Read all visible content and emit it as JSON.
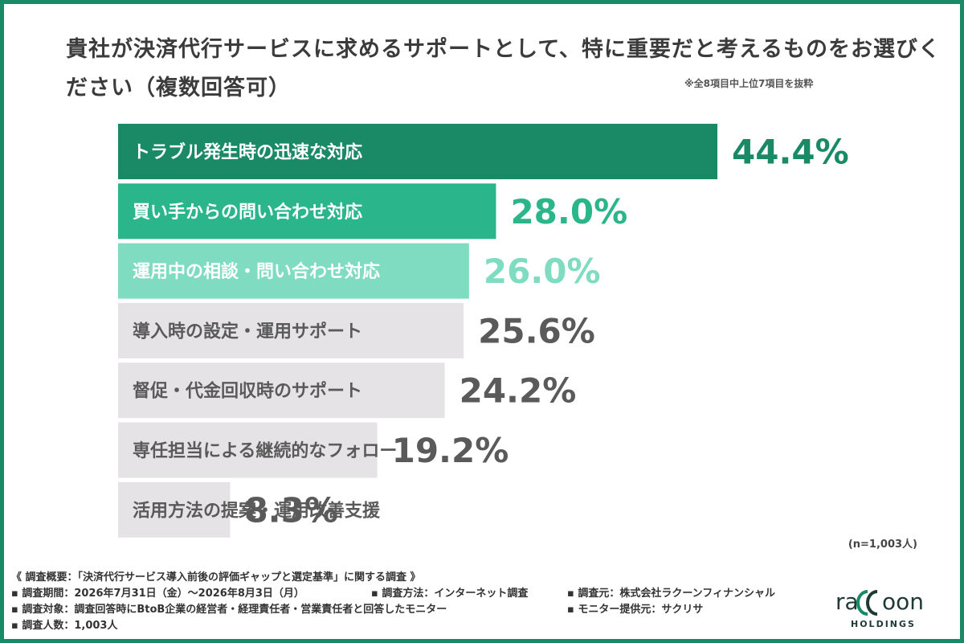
{
  "title": "貴社が決済代行サービスに求めるサポートとして、特に重要だと考えるものをお選びください（複数回答可）",
  "note": "※全8項目中上位7項目を抜粋",
  "sample_size": "(n=1,003人)",
  "chart_data": {
    "type": "bar",
    "orientation": "horizontal",
    "categories": [
      "トラブル発生時の迅速な対応",
      "買い手からの問い合わせ対応",
      "運用中の相談・問い合わせ対応",
      "導入時の設定・運用サポート",
      "督促・代金回収時のサポート",
      "専任担当による継続的なフォロー",
      "活用方法の提案・運用改善支援"
    ],
    "values": [
      44.4,
      28.0,
      26.0,
      25.6,
      24.2,
      19.2,
      8.3
    ],
    "value_labels": [
      "44.4%",
      "28.0%",
      "26.0%",
      "25.6%",
      "24.2%",
      "19.2%",
      "8.3%"
    ],
    "unit": "%",
    "xlim": [
      0,
      44.4
    ],
    "bar_colors": [
      "#1a8a66",
      "#2bb58a",
      "#7fdcc0",
      "#e6e3e6",
      "#e6e3e6",
      "#e6e3e6",
      "#e6e3e6"
    ],
    "label_colors": [
      "#ffffff",
      "#ffffff",
      "#ffffff",
      "#5a5a5a",
      "#5a5a5a",
      "#5a5a5a",
      "#5a5a5a"
    ],
    "value_colors": [
      "#1a8a66",
      "#2bb58a",
      "#7fdcc0",
      "#5a5a5a",
      "#5a5a5a",
      "#5a5a5a",
      "#5a5a5a"
    ]
  },
  "footer": {
    "overview": "《 調査概要：「決済代行サービス導入前後の評価ギャップと選定基準」に関する調査 》",
    "period": "▪ 調査期間：2026年7月31日（金）〜2026年8月3日（月）",
    "method": "▪ 調査方法：インターネット調査",
    "source": "▪ 調査元：株式会社ラクーンフィナンシャル",
    "target": "▪ 調査対象：調査回答時にBtoB企業の経営者・経理責任者・営業責任者と回答したモニター",
    "provider": "▪ モニター提供元：サクリサ",
    "count": "▪ 調査人数：1,003人"
  },
  "logo": {
    "text": "raccoon",
    "sub": "HOLDINGS",
    "color": "#1f3a35",
    "accent": "#1a8a66"
  }
}
